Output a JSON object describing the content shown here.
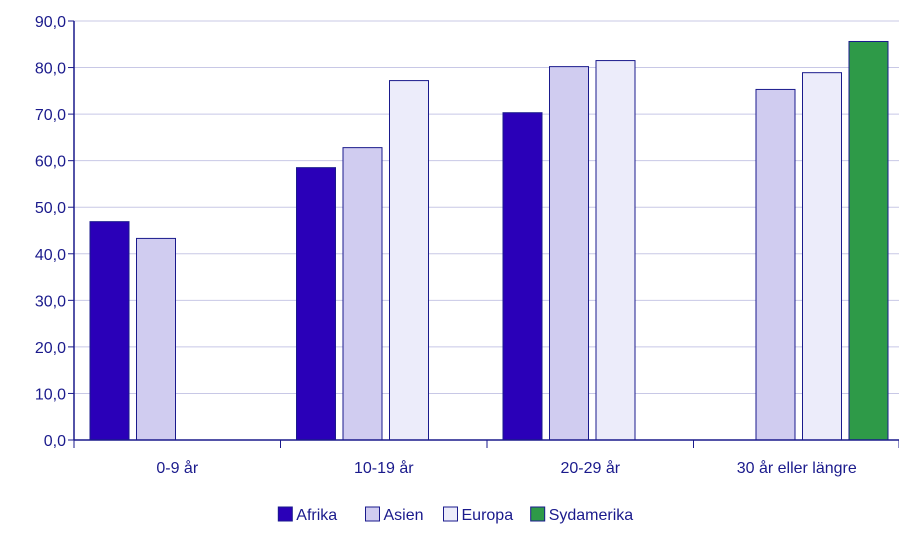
{
  "chart_data": {
    "type": "bar",
    "title": "",
    "xlabel": "",
    "ylabel": "",
    "ylim": [
      0,
      90
    ],
    "yticks": [
      "0,0",
      "10,0",
      "20,0",
      "30,0",
      "40,0",
      "50,0",
      "60,0",
      "70,0",
      "80,0",
      "90,0"
    ],
    "categories": [
      "0-9 år",
      "10-19 år",
      "20-29 år",
      "30 år eller längre"
    ],
    "grid": true,
    "legend_position": "bottom",
    "series": [
      {
        "name": "Afrika",
        "color": "#2a00b8",
        "values": [
          46.9,
          58.5,
          70.3,
          null
        ]
      },
      {
        "name": "Asien",
        "color": "#d0ccf0",
        "values": [
          43.3,
          62.8,
          80.2,
          75.3
        ]
      },
      {
        "name": "Europa",
        "color": "#ececfa",
        "values": [
          null,
          77.2,
          81.5,
          78.9
        ]
      },
      {
        "name": "Sydamerika",
        "color": "#2e9a48",
        "values": [
          null,
          null,
          null,
          85.6
        ]
      }
    ]
  }
}
